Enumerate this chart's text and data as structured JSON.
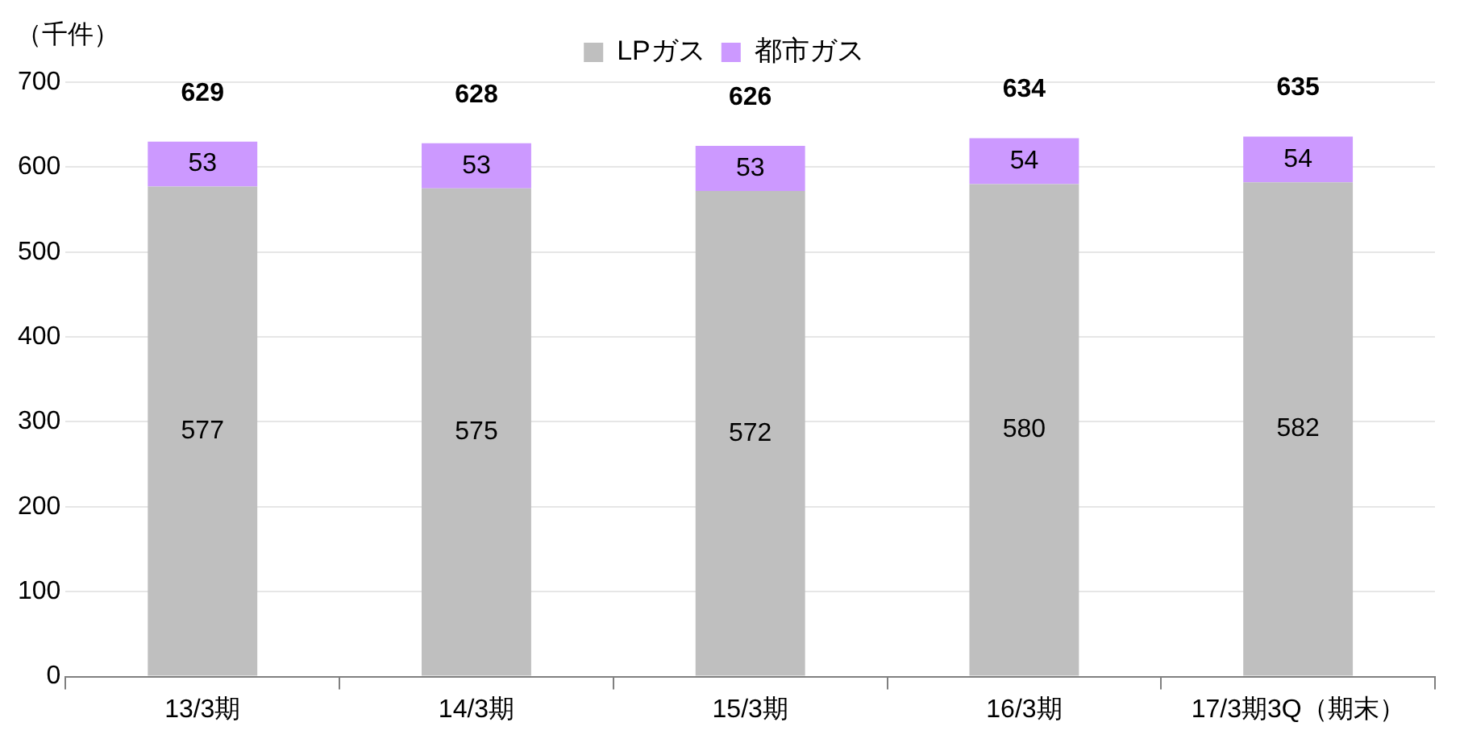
{
  "chart_data": {
    "type": "bar",
    "stacked": true,
    "ylabel": "（千件）",
    "categories": [
      "13/3期",
      "14/3期",
      "15/3期",
      "16/3期",
      "17/3期3Q（期末）"
    ],
    "series": [
      {
        "name": "LPガス",
        "color": "#bfbfbf",
        "values": [
          577,
          575,
          572,
          580,
          582
        ]
      },
      {
        "name": "都市ガス",
        "color": "#cc99ff",
        "values": [
          53,
          53,
          53,
          54,
          54
        ]
      }
    ],
    "totals": [
      "629",
      "628",
      "626",
      "634",
      "635"
    ],
    "data_labels": true,
    "ylim": [
      0,
      700
    ],
    "yticks": [
      0,
      100,
      200,
      300,
      400,
      500,
      600,
      700
    ],
    "grid": "y",
    "legend": "top"
  }
}
